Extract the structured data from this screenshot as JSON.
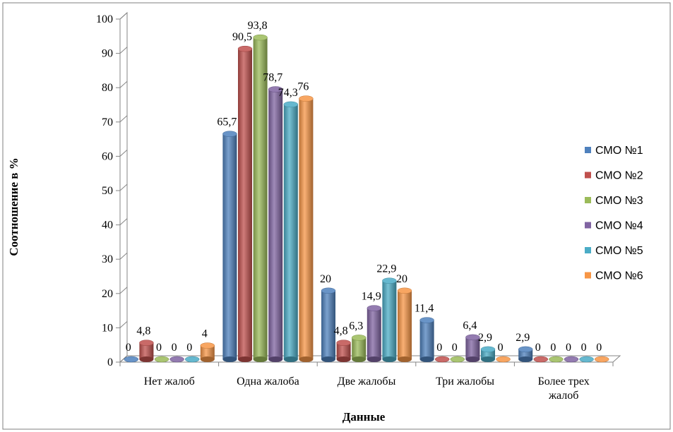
{
  "chart_data": {
    "type": "bar",
    "title": "",
    "xlabel": "Данные",
    "ylabel": "Соотношение в %",
    "ylim": [
      0,
      100
    ],
    "yticks": [
      0,
      10,
      20,
      30,
      40,
      50,
      60,
      70,
      80,
      90,
      100
    ],
    "categories": [
      [
        "Нет жалоб"
      ],
      [
        "Одна жалоба"
      ],
      [
        "Две жалобы"
      ],
      [
        "Три жалобы"
      ],
      [
        "Более трех",
        "жалоб"
      ]
    ],
    "series": [
      {
        "name": "СМО №1",
        "color": "#4F81BD",
        "values": [
          0,
          65.7,
          20,
          11.4,
          2.9
        ],
        "labels": [
          "0",
          "65,7",
          "20",
          "11,4",
          "2,9"
        ]
      },
      {
        "name": "СМО №2",
        "color": "#C0504D",
        "values": [
          4.8,
          90.5,
          4.8,
          0,
          0
        ],
        "labels": [
          "4,8",
          "90,5",
          "4,8",
          "0",
          "0"
        ]
      },
      {
        "name": "СМО №3",
        "color": "#9BBB59",
        "values": [
          0,
          93.8,
          6.3,
          0,
          0
        ],
        "labels": [
          "0",
          "93,8",
          "6,3",
          "0",
          "0"
        ]
      },
      {
        "name": "СМО №4",
        "color": "#8064A2",
        "values": [
          0,
          78.7,
          14.9,
          6.4,
          0
        ],
        "labels": [
          "0",
          "78,7",
          "14,9",
          "6,4",
          "0"
        ]
      },
      {
        "name": "СМО №5",
        "color": "#4BACC6",
        "values": [
          0,
          74.3,
          22.9,
          2.9,
          0
        ],
        "labels": [
          "0",
          "74,3",
          "22,9",
          "2,9",
          "0"
        ]
      },
      {
        "name": "СМО №6",
        "color": "#F79646",
        "values": [
          4,
          76,
          20,
          0,
          0
        ],
        "labels": [
          "4",
          "76",
          "20",
          "0",
          "0"
        ]
      }
    ],
    "legend": "right",
    "grid": false
  }
}
